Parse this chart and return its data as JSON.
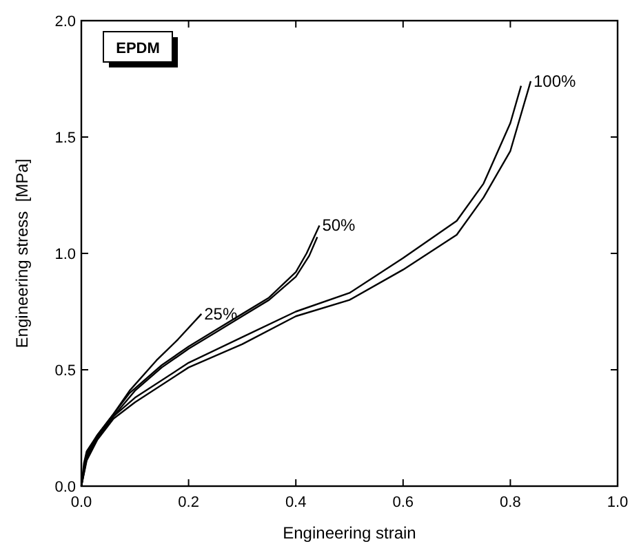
{
  "chart_data": {
    "type": "line",
    "xlabel": "Engineering strain",
    "ylabel": "Engineering stress  [MPa]",
    "annotations": [
      "EPDM"
    ],
    "xlim": [
      0,
      1.0
    ],
    "ylim": [
      0,
      2.0
    ],
    "xticks": [
      {
        "value": 0,
        "label": "0.0"
      },
      0.2,
      0.4,
      0.6,
      0.8,
      {
        "value": 1,
        "label": "1.0"
      }
    ],
    "yticks": [
      {
        "value": 0,
        "label": "0.0"
      },
      0.5,
      {
        "value": 1,
        "label": "1.0"
      },
      1.5,
      {
        "value": 2,
        "label": "2.0"
      }
    ],
    "grid": false,
    "legend": false,
    "marker": "none",
    "line_style": "solid",
    "series": [
      {
        "name": "25%",
        "color": "#000000",
        "x": [
          0,
          0.005,
          0.01,
          0.03,
          0.06,
          0.09,
          0.14,
          0.18,
          0.224
        ],
        "values": [
          0,
          0.1,
          0.15,
          0.22,
          0.31,
          0.41,
          0.54,
          0.63,
          0.74
        ]
      },
      {
        "name": "50%",
        "color": "#000000",
        "x": [
          0,
          0.01,
          0.03,
          0.06,
          0.09,
          0.15,
          0.2,
          0.25,
          0.3,
          0.35,
          0.4,
          0.42,
          0.444
        ],
        "values": [
          0,
          0.14,
          0.22,
          0.31,
          0.4,
          0.52,
          0.6,
          0.67,
          0.74,
          0.81,
          0.92,
          1.0,
          1.12
        ]
      },
      {
        "color": "#000000",
        "x": [
          0,
          0.01,
          0.03,
          0.06,
          0.1,
          0.15,
          0.2,
          0.25,
          0.3,
          0.35,
          0.4,
          0.425,
          0.44
        ],
        "values": [
          0,
          0.13,
          0.21,
          0.3,
          0.41,
          0.51,
          0.59,
          0.66,
          0.73,
          0.8,
          0.9,
          0.99,
          1.07
        ]
      },
      {
        "name": "100%",
        "color": "#000000",
        "x": [
          0,
          0.01,
          0.03,
          0.06,
          0.1,
          0.2,
          0.3,
          0.4,
          0.5,
          0.6,
          0.7,
          0.75,
          0.8,
          0.838
        ],
        "values": [
          0,
          0.11,
          0.2,
          0.29,
          0.36,
          0.51,
          0.61,
          0.73,
          0.8,
          0.93,
          1.08,
          1.24,
          1.44,
          1.74
        ]
      },
      {
        "color": "#000000",
        "x": [
          0,
          0.01,
          0.03,
          0.06,
          0.1,
          0.2,
          0.3,
          0.4,
          0.5,
          0.6,
          0.7,
          0.75,
          0.8,
          0.82
        ],
        "values": [
          0,
          0.12,
          0.21,
          0.3,
          0.38,
          0.53,
          0.64,
          0.75,
          0.83,
          0.98,
          1.14,
          1.3,
          1.56,
          1.72
        ]
      }
    ]
  }
}
